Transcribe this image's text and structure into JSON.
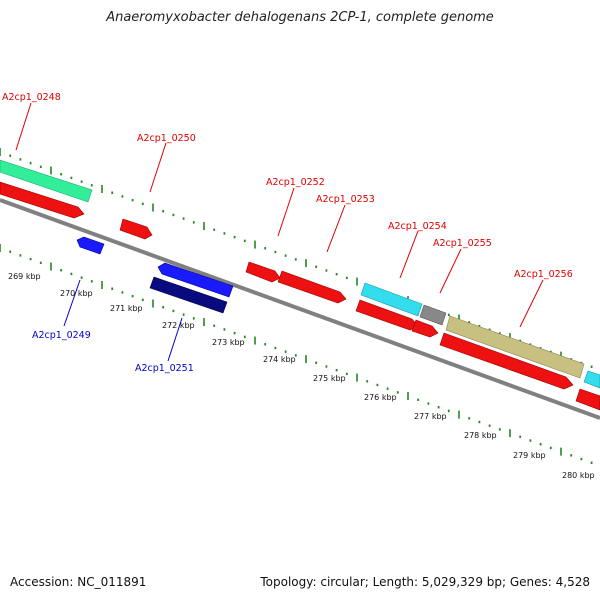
{
  "title": "Anaeromyxobacter dehalogenans 2CP-1, complete genome",
  "footer": {
    "accession": "Accession: NC_011891",
    "topology": "Topology: circular; Length: 5,029,329 bp; Genes: 4,528"
  },
  "colors": {
    "forward_cds": "#ee1111",
    "reverse_cds": "#1a1aff",
    "reverse_cds_dark": "#0a0a80",
    "forward_label": "#dd0000",
    "reverse_label": "#0000cc",
    "rna_green": "#33ee99",
    "rna_cyan": "#33ddee",
    "other_gray": "#888888",
    "other_khaki": "#c8c080",
    "backbone": "#808080",
    "ticks": "#228822"
  },
  "forward_labels": [
    "A2cp1_0248",
    "A2cp1_0250",
    "A2cp1_0252",
    "A2cp1_0253",
    "A2cp1_0254",
    "A2cp1_0255",
    "A2cp1_0256"
  ],
  "reverse_labels": [
    "A2cp1_0249",
    "A2cp1_0251"
  ],
  "kbp_labels": [
    "269 kbp",
    "270 kbp",
    "271 kbp",
    "272 kbp",
    "273 kbp",
    "274 kbp",
    "275 kbp",
    "276 kbp",
    "277 kbp",
    "278 kbp",
    "279 kbp",
    "280 kbp"
  ]
}
